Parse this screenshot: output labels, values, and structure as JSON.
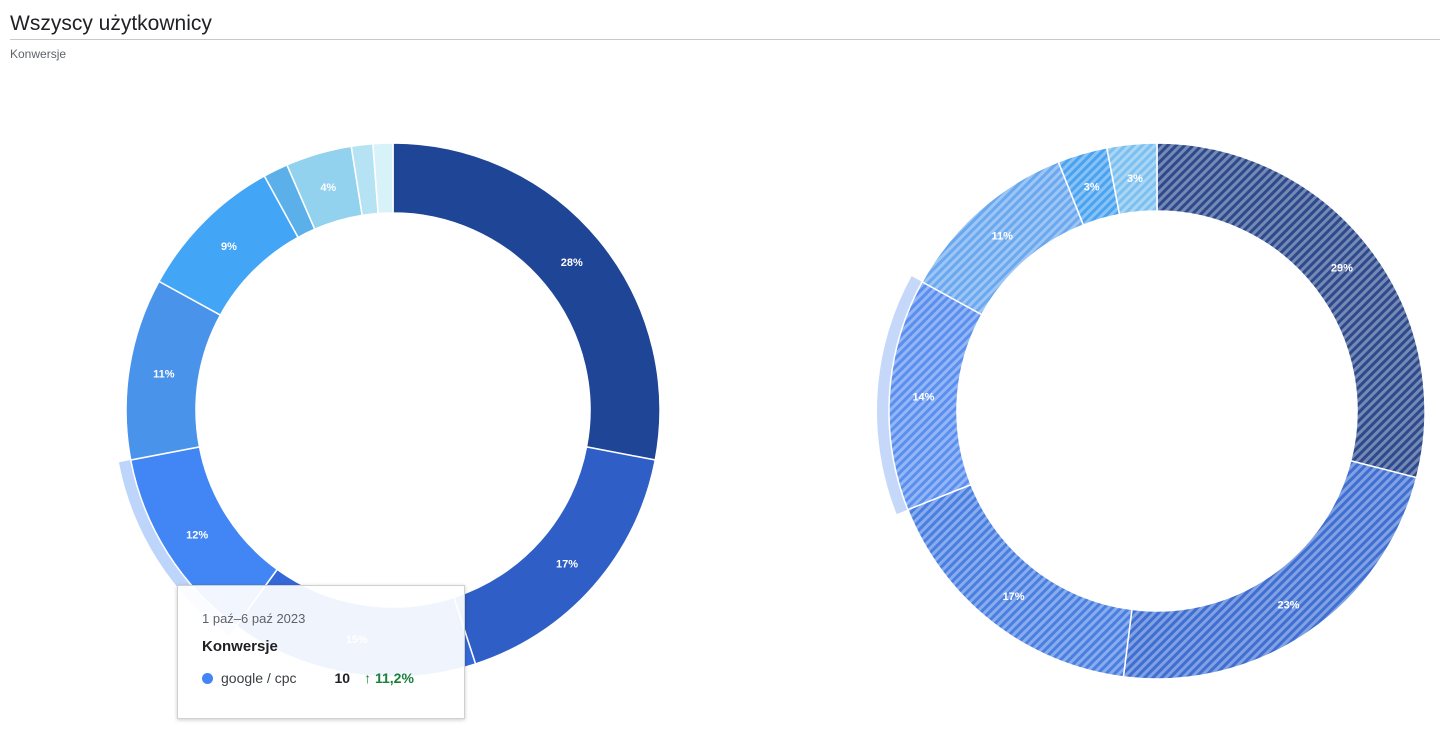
{
  "header": {
    "title": "Wszyscy użytkownicy",
    "subtitle": "Konwersje"
  },
  "chart_data": [
    {
      "type": "pie",
      "name": "current",
      "hole": true,
      "highlighted_index": 3,
      "labels": [
        "28%",
        "17%",
        "15%",
        "12%",
        "11%",
        "9%",
        "",
        "4%",
        "",
        ""
      ],
      "values": [
        28,
        17,
        15,
        12,
        11,
        9,
        1.5,
        4,
        1.3,
        1.2
      ],
      "colors": [
        "#1f4596",
        "#2f5fc6",
        "#3468d8",
        "#4285f4",
        "#4a93ea",
        "#42a5f5",
        "#5cb0ea",
        "#92d2ee",
        "#b6e3f3",
        "#d8f2f9"
      ]
    },
    {
      "type": "pie",
      "name": "comparison",
      "hole": true,
      "hatched": true,
      "highlighted_index": 3,
      "labels": [
        "29%",
        "23%",
        "17%",
        "14%",
        "11%",
        "3%",
        "3%"
      ],
      "values": [
        29,
        23,
        17,
        14,
        11,
        3,
        3
      ],
      "colors": [
        "#2c4a8c",
        "#3f6fd2",
        "#4a7fe2",
        "#5a8ff0",
        "#6aa8f0",
        "#4aa3f0",
        "#7cc0f0"
      ]
    }
  ],
  "tooltip": {
    "date": "1 paź–6 paź 2023",
    "metric": "Konwersje",
    "series": "google / cpc",
    "value": "10",
    "change": "11,2%",
    "arrow": "↑",
    "dot_color": "#4285f4"
  }
}
